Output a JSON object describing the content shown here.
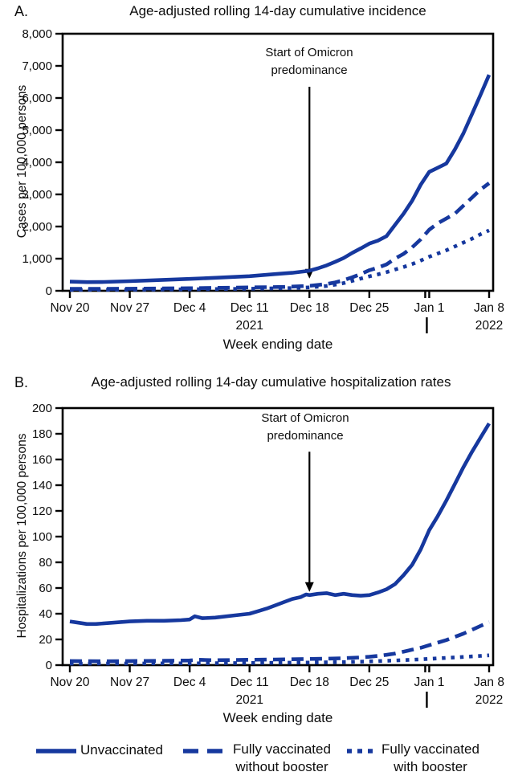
{
  "colors": {
    "line_blue": "#16389e",
    "axis_black": "#000000",
    "text_black": "#0d0d0d"
  },
  "legend": {
    "items": [
      {
        "style": "solid",
        "line1": "Unvaccinated",
        "line2": ""
      },
      {
        "style": "dashed",
        "line1": "Fully vaccinated",
        "line2": "without booster"
      },
      {
        "style": "dotted",
        "line1": "Fully vaccinated",
        "line2": "with booster"
      }
    ]
  },
  "chart_data": [
    {
      "type": "line",
      "panel_label": "A.",
      "title": "Age-adjusted rolling 14-day cumulative incidence",
      "xlabel": "Week ending date",
      "ylabel": "Cases per 100,000 persons",
      "ylim": [
        0,
        8000
      ],
      "ytick_labels": [
        "0",
        "1,000",
        "2,000",
        "3,000",
        "4,000",
        "5,000",
        "6,000",
        "7,000",
        "8,000"
      ],
      "x_unit": "days since Nov 20, 2021",
      "x_tick_days": [
        0,
        7,
        14,
        21,
        28,
        35,
        42,
        49
      ],
      "x_tick_labels": [
        "Nov 20",
        "Nov 27",
        "Dec 4",
        "Dec 11",
        "Dec 18",
        "Dec 25",
        "Jan 1",
        "Jan 8"
      ],
      "year_labels": [
        {
          "text": "2021",
          "tick": 3
        },
        {
          "text": "2022",
          "tick": 7
        }
      ],
      "year_divider_tick": 6,
      "annotation": {
        "line1": "Start of Omicron",
        "line2": "predominance",
        "arrow_x_day": 28,
        "arrow_from_value": 6350,
        "arrow_to_value": 380
      },
      "series": [
        {
          "name": "Unvaccinated",
          "style": "solid",
          "points": [
            [
              0,
              285
            ],
            [
              2,
              270
            ],
            [
              4,
              275
            ],
            [
              7,
              300
            ],
            [
              10,
              330
            ],
            [
              14,
              370
            ],
            [
              17,
              405
            ],
            [
              21,
              455
            ],
            [
              24,
              520
            ],
            [
              26,
              560
            ],
            [
              28,
              625
            ],
            [
              29,
              700
            ],
            [
              30,
              790
            ],
            [
              31,
              900
            ],
            [
              32,
              1020
            ],
            [
              33,
              1180
            ],
            [
              34,
              1320
            ],
            [
              35,
              1470
            ],
            [
              36,
              1560
            ],
            [
              37,
              1700
            ],
            [
              38,
              2050
            ],
            [
              39,
              2400
            ],
            [
              40,
              2800
            ],
            [
              41,
              3300
            ],
            [
              42,
              3700
            ],
            [
              43,
              3830
            ],
            [
              44,
              3960
            ],
            [
              45,
              4400
            ],
            [
              46,
              4900
            ],
            [
              47,
              5500
            ],
            [
              48,
              6100
            ],
            [
              49,
              6720
            ]
          ]
        },
        {
          "name": "Fully vaccinated without booster",
          "style": "dashed",
          "points": [
            [
              0,
              60
            ],
            [
              4,
              60
            ],
            [
              7,
              65
            ],
            [
              14,
              80
            ],
            [
              21,
              105
            ],
            [
              25,
              120
            ],
            [
              28,
              155
            ],
            [
              30,
              210
            ],
            [
              31,
              260
            ],
            [
              32,
              330
            ],
            [
              33,
              420
            ],
            [
              34,
              520
            ],
            [
              35,
              640
            ],
            [
              36,
              720
            ],
            [
              37,
              820
            ],
            [
              38,
              1000
            ],
            [
              39,
              1150
            ],
            [
              40,
              1350
            ],
            [
              41,
              1600
            ],
            [
              42,
              1900
            ],
            [
              43,
              2100
            ],
            [
              44,
              2250
            ],
            [
              45,
              2400
            ],
            [
              46,
              2650
            ],
            [
              47,
              2900
            ],
            [
              48,
              3150
            ],
            [
              49,
              3350
            ]
          ]
        },
        {
          "name": "Fully vaccinated with booster",
          "style": "dotted",
          "points": [
            [
              0,
              30
            ],
            [
              7,
              35
            ],
            [
              14,
              45
            ],
            [
              21,
              65
            ],
            [
              26,
              85
            ],
            [
              28,
              105
            ],
            [
              30,
              150
            ],
            [
              31,
              190
            ],
            [
              32,
              240
            ],
            [
              33,
              310
            ],
            [
              34,
              380
            ],
            [
              35,
              450
            ],
            [
              36,
              510
            ],
            [
              37,
              580
            ],
            [
              38,
              660
            ],
            [
              39,
              740
            ],
            [
              40,
              830
            ],
            [
              41,
              940
            ],
            [
              42,
              1060
            ],
            [
              43,
              1160
            ],
            [
              44,
              1260
            ],
            [
              45,
              1380
            ],
            [
              46,
              1500
            ],
            [
              47,
              1620
            ],
            [
              48,
              1760
            ],
            [
              49,
              1880
            ]
          ]
        }
      ]
    },
    {
      "type": "line",
      "panel_label": "B.",
      "title": "Age-adjusted rolling 14-day cumulative hospitalization rates",
      "xlabel": "Week ending date",
      "ylabel": "Hospitalizations per 100,000 persons",
      "ylim": [
        0,
        200
      ],
      "ytick_labels": [
        "0",
        "20",
        "40",
        "60",
        "80",
        "100",
        "120",
        "140",
        "160",
        "180",
        "200"
      ],
      "x_unit": "days since Nov 20, 2021",
      "x_tick_days": [
        0,
        7,
        14,
        21,
        28,
        35,
        42,
        49
      ],
      "x_tick_labels": [
        "Nov 20",
        "Nov 27",
        "Dec 4",
        "Dec 11",
        "Dec 18",
        "Dec 25",
        "Jan 1",
        "Jan 8"
      ],
      "year_labels": [
        {
          "text": "2021",
          "tick": 3
        },
        {
          "text": "2022",
          "tick": 7
        }
      ],
      "year_divider_tick": 6,
      "annotation": {
        "line1": "Start of Omicron",
        "line2": "predominance",
        "arrow_x_day": 28,
        "arrow_from_value": 166,
        "arrow_to_value": 57
      },
      "series": [
        {
          "name": "Unvaccinated",
          "style": "solid",
          "points": [
            [
              0,
              34
            ],
            [
              1,
              33
            ],
            [
              2,
              32
            ],
            [
              3,
              32
            ],
            [
              5,
              33
            ],
            [
              7,
              34
            ],
            [
              9,
              34.5
            ],
            [
              11,
              34.5
            ],
            [
              13,
              35
            ],
            [
              14,
              35.5
            ],
            [
              14.6,
              38
            ],
            [
              15.5,
              36.5
            ],
            [
              17,
              37
            ],
            [
              19,
              38.5
            ],
            [
              21,
              40
            ],
            [
              22,
              42
            ],
            [
              23,
              44
            ],
            [
              24,
              46.5
            ],
            [
              25,
              49
            ],
            [
              26,
              51.5
            ],
            [
              27,
              53
            ],
            [
              27.6,
              55
            ],
            [
              28,
              54.5
            ],
            [
              29,
              55.5
            ],
            [
              30,
              56
            ],
            [
              31,
              54.5
            ],
            [
              32,
              55.5
            ],
            [
              33,
              54.5
            ],
            [
              34,
              54
            ],
            [
              35,
              54.5
            ],
            [
              36,
              56.5
            ],
            [
              37,
              59
            ],
            [
              38,
              63
            ],
            [
              39,
              70
            ],
            [
              40,
              78
            ],
            [
              41,
              90
            ],
            [
              42,
              105
            ],
            [
              43,
              116
            ],
            [
              44,
              128
            ],
            [
              45,
              141
            ],
            [
              46,
              154
            ],
            [
              47,
              166
            ],
            [
              48,
              177
            ],
            [
              49,
              188
            ]
          ]
        },
        {
          "name": "Fully vaccinated without booster",
          "style": "dashed",
          "points": [
            [
              0,
              3.2
            ],
            [
              4,
              3
            ],
            [
              7,
              3.2
            ],
            [
              11,
              3.4
            ],
            [
              14,
              3.6
            ],
            [
              15,
              4.2
            ],
            [
              17,
              3.8
            ],
            [
              21,
              4.2
            ],
            [
              24,
              4.4
            ],
            [
              28,
              4.8
            ],
            [
              30,
              5
            ],
            [
              32,
              5.4
            ],
            [
              34,
              6
            ],
            [
              35,
              6.5
            ],
            [
              36,
              7.2
            ],
            [
              37,
              8
            ],
            [
              38,
              9
            ],
            [
              39,
              10.5
            ],
            [
              40,
              12
            ],
            [
              41,
              13.5
            ],
            [
              42,
              15.5
            ],
            [
              43,
              17.5
            ],
            [
              44,
              19.5
            ],
            [
              45,
              22
            ],
            [
              46,
              24.5
            ],
            [
              47,
              27.5
            ],
            [
              48,
              30.5
            ],
            [
              49,
              33.5
            ]
          ]
        },
        {
          "name": "Fully vaccinated with booster",
          "style": "dotted",
          "points": [
            [
              0,
              1.2
            ],
            [
              7,
              1.3
            ],
            [
              14,
              1.4
            ],
            [
              21,
              1.7
            ],
            [
              28,
              2
            ],
            [
              32,
              2.4
            ],
            [
              34,
              2.7
            ],
            [
              36,
              3.1
            ],
            [
              38,
              3.6
            ],
            [
              40,
              4.2
            ],
            [
              42,
              4.9
            ],
            [
              44,
              5.6
            ],
            [
              46,
              6.4
            ],
            [
              48,
              7.2
            ],
            [
              49,
              7.6
            ]
          ]
        }
      ]
    }
  ]
}
